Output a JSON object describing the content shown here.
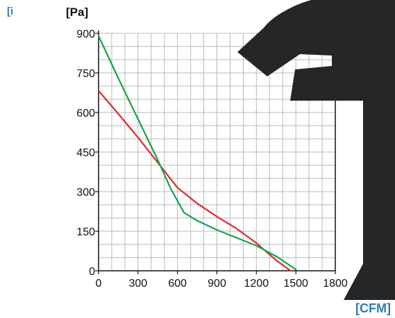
{
  "corner_mark": "[i",
  "chart_data": {
    "type": "line",
    "xlabel": "[CFM]",
    "ylabel": "[Pa]",
    "xlim": [
      0,
      1800
    ],
    "ylim": [
      0,
      900
    ],
    "x_ticks": [
      0,
      300,
      600,
      900,
      1200,
      1500,
      1800
    ],
    "y_ticks": [
      0,
      150,
      300,
      450,
      600,
      750,
      900
    ],
    "grid": true,
    "colors": {
      "red_series": "#e3262b",
      "green_series": "#16a34a",
      "grid": "#b8b8b8",
      "axis_label_accent": "#2a7db8"
    },
    "series": [
      {
        "color": "#e3262b",
        "points": [
          [
            0,
            682
          ],
          [
            150,
            595
          ],
          [
            300,
            505
          ],
          [
            450,
            410
          ],
          [
            600,
            315
          ],
          [
            750,
            255
          ],
          [
            900,
            205
          ],
          [
            1050,
            160
          ],
          [
            1200,
            105
          ],
          [
            1350,
            40
          ],
          [
            1460,
            0
          ]
        ]
      },
      {
        "color": "#16a34a",
        "points": [
          [
            0,
            890
          ],
          [
            150,
            730
          ],
          [
            300,
            575
          ],
          [
            450,
            420
          ],
          [
            550,
            310
          ],
          [
            650,
            220
          ],
          [
            750,
            190
          ],
          [
            900,
            155
          ],
          [
            1050,
            125
          ],
          [
            1200,
            95
          ],
          [
            1350,
            55
          ],
          [
            1500,
            5
          ]
        ]
      }
    ]
  }
}
